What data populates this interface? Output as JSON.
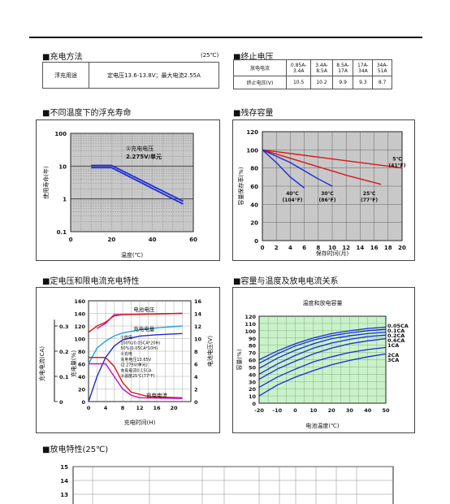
{
  "charge_method": {
    "title": "■充电方法",
    "temp_note": "(25℃)",
    "row_label": "浮充用途",
    "row_value": "定电压13.6-13.8V；最大电流2.55A"
  },
  "cutoff_voltage": {
    "title": "■终止电压",
    "row1_label": "放电电流",
    "currents": [
      "0.85A-3.4A",
      "3.4A-8.5A",
      "8.5A-17A",
      "17A-34A",
      "34A-51A"
    ],
    "row2_label": "终止电压(V)",
    "voltages": [
      "10.5",
      "10.2",
      "9.9",
      "9.3",
      "8.7"
    ]
  },
  "float_life": {
    "title": "■不同温度下的浮充寿命",
    "annotation_line1": "①充电电压",
    "annotation_line2": "2.275V/单元",
    "chart_data": {
      "type": "line",
      "xlabel": "温度(℃)",
      "ylabel": "使用寿命(年)",
      "yscale": "log",
      "xlim": [
        0,
        60
      ],
      "ylim": [
        0.1,
        100
      ],
      "xticks": [
        "0",
        "20",
        "40",
        "60"
      ],
      "yticks": [
        "0.1",
        "1",
        "10",
        "100"
      ],
      "series": [
        {
          "x": [
            10,
            20,
            55
          ],
          "y": [
            10.5,
            10.5,
            0.85
          ]
        },
        {
          "x": [
            10,
            20,
            55
          ],
          "y": [
            9.0,
            9.0,
            0.7
          ]
        }
      ]
    }
  },
  "capacity_retention": {
    "title": "■残存容量",
    "chart_data": {
      "type": "line",
      "xlabel": "保存时间(月)",
      "ylabel": "容量保存率(%)",
      "xlim": [
        0,
        20
      ],
      "ylim": [
        0,
        120
      ],
      "xticks": [
        "0",
        "2",
        "4",
        "6",
        "8",
        "10",
        "12",
        "14",
        "16",
        "18",
        "20"
      ],
      "yticks": [
        "0",
        "20",
        "40",
        "60",
        "80",
        "100",
        "120"
      ],
      "series": [
        {
          "name": "5℃\n(41°F)",
          "x": [
            0,
            8,
            16,
            20
          ],
          "y": [
            100,
            92,
            84,
            80
          ]
        },
        {
          "name": "25℃\n(77°F)",
          "x": [
            0,
            6,
            12,
            17
          ],
          "y": [
            100,
            86,
            72,
            62
          ]
        },
        {
          "name": "30℃\n(86°F)",
          "x": [
            0,
            4,
            8,
            10
          ],
          "y": [
            100,
            86,
            68,
            60
          ]
        },
        {
          "name": "40℃\n(104°F)",
          "x": [
            0,
            2,
            4,
            6
          ],
          "y": [
            100,
            86,
            70,
            58
          ]
        }
      ]
    }
  },
  "cv_charge": {
    "title": "■定电压和限电流充电特性",
    "label_voltage": "电池电压",
    "label_charged": "充电电量",
    "label_current": "充电电流",
    "legend": [
      "①放电",
      "100%(0.05CA*20H)",
      "50%(0.05CA*10H)",
      "②充电",
      "充电电压13.65V",
      "(2.275V/单元)",
      "充电电流0.15CA",
      "③温度25℃(77°F)"
    ],
    "chart_data": {
      "type": "line",
      "xlabel": "充电时间(H)",
      "ylabel_left_outer": "充电电流(CA)",
      "ylabel_left_inner": "充电量(%)",
      "ylabel_right": "电池电压(V)",
      "xlim": [
        0,
        24
      ],
      "xticks": [
        "0",
        "4",
        "8",
        "12",
        "16",
        "20"
      ],
      "left_outer_ticks": [
        "0",
        "0.1",
        "0.2",
        "0.3"
      ],
      "left_inner_ticks": [
        "0",
        "20",
        "40",
        "60",
        "80",
        "100",
        "120",
        "140",
        "160"
      ],
      "right_ticks": [
        "0",
        "2",
        "4",
        "6",
        "8",
        "10",
        "12",
        "14",
        "16"
      ],
      "series": [
        {
          "name": "充电电量",
          "x": [
            0,
            2,
            4,
            6,
            8,
            12,
            16,
            22
          ],
          "y": [
            0,
            40,
            70,
            88,
            98,
            104,
            106,
            108
          ]
        },
        {
          "name": "充电电压",
          "x": [
            0,
            2,
            4,
            6,
            8,
            12,
            16,
            22
          ],
          "y": [
            60,
            85,
            96,
            104,
            109,
            114,
            117,
            120
          ]
        },
        {
          "name": "电池电压",
          "x": [
            2,
            4,
            6,
            22
          ],
          "y": [
            116,
            124,
            138,
            140
          ]
        },
        {
          "name": "电池电压",
          "x": [
            0,
            2,
            4,
            6,
            8,
            22
          ],
          "y": [
            110,
            120,
            126,
            136,
            138,
            140
          ]
        },
        {
          "name": "充电电流",
          "x": [
            0,
            4,
            6,
            8,
            10,
            14,
            22
          ],
          "y": [
            70,
            70,
            56,
            30,
            15,
            8,
            6
          ]
        },
        {
          "name": "充电电流",
          "x": [
            0,
            4,
            8,
            10,
            12,
            22
          ],
          "y": [
            60,
            60,
            20,
            10,
            6,
            5
          ]
        }
      ]
    }
  },
  "capacity_temp": {
    "title": "■容量与温度及放电电流关系",
    "inner_title": "温度和放电容量",
    "chart_data": {
      "type": "line",
      "xlabel": "电池温度(℃)",
      "ylabel": "容量(%)",
      "xlim": [
        -20,
        50
      ],
      "ylim": [
        0,
        120
      ],
      "xticks": [
        "-20",
        "-10",
        "0",
        "10",
        "20",
        "30",
        "40",
        "50"
      ],
      "yticks": [
        "0",
        "10",
        "20",
        "30",
        "40",
        "50",
        "60",
        "70",
        "80",
        "90",
        "100",
        "110",
        "120"
      ],
      "series": [
        {
          "name": "0.05CA",
          "x": [
            -20,
            -10,
            0,
            10,
            20,
            30,
            40,
            50
          ],
          "y": [
            60,
            72,
            82,
            90,
            96,
            100,
            103,
            105
          ]
        },
        {
          "name": "0.1CA",
          "x": [
            -20,
            -10,
            0,
            10,
            20,
            30,
            40,
            50
          ],
          "y": [
            55,
            68,
            79,
            87,
            93,
            97,
            100,
            102
          ]
        },
        {
          "name": "0.2CA",
          "x": [
            -20,
            -10,
            0,
            10,
            20,
            30,
            40,
            50
          ],
          "y": [
            48,
            62,
            73,
            82,
            89,
            93,
            96,
            98
          ]
        },
        {
          "name": "0.6CA",
          "x": [
            -20,
            -10,
            0,
            10,
            20,
            30,
            40,
            50
          ],
          "y": [
            40,
            54,
            66,
            76,
            83,
            88,
            92,
            94
          ]
        },
        {
          "name": "1CA",
          "x": [
            -20,
            -10,
            0,
            10,
            20,
            30,
            40,
            50
          ],
          "y": [
            33,
            47,
            58,
            68,
            76,
            82,
            86,
            89
          ]
        },
        {
          "name": "2CA",
          "x": [
            -20,
            -10,
            0,
            10,
            20,
            30,
            40,
            50
          ],
          "y": [
            22,
            36,
            47,
            57,
            64,
            70,
            74,
            77
          ]
        },
        {
          "name": "3CA",
          "x": [
            -20,
            -10,
            0,
            10,
            20,
            30,
            40,
            50
          ],
          "y": [
            10,
            25,
            36,
            45,
            53,
            59,
            64,
            68
          ]
        }
      ]
    }
  },
  "discharge": {
    "title": "■放电特性(25℃)",
    "chart_data": {
      "type": "line",
      "yticks": [
        "15",
        "14",
        "13"
      ]
    }
  }
}
